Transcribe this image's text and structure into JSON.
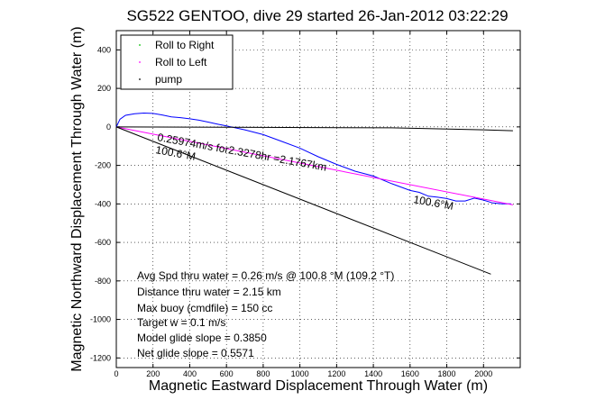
{
  "chart_data": {
    "type": "line",
    "title": "SG522 GENTOO, dive 29 started 26-Jan-2012 03:22:29",
    "xlabel": "Magnetic Eastward Displacement Through Water (m)",
    "ylabel": "Magnetic Northward Displacement Through Water (m)",
    "xlim": [
      0,
      2200
    ],
    "ylim": [
      -1250,
      500
    ],
    "xticks": [
      0,
      200,
      400,
      600,
      800,
      1000,
      1200,
      1400,
      1600,
      1800,
      2000
    ],
    "yticks": [
      -1200,
      -1000,
      -800,
      -600,
      -400,
      -200,
      0,
      200,
      400
    ],
    "grid": "dotted",
    "legend": {
      "placement": "top-left",
      "entries": [
        {
          "name": "Roll to Right",
          "color": "#00c000"
        },
        {
          "name": "Roll to Left",
          "color": "#ff00ff"
        },
        {
          "name": "pump",
          "color": "#000000"
        }
      ]
    },
    "series": [
      {
        "color": "#0000ff",
        "x": [
          0,
          20,
          50,
          100,
          150,
          200,
          250,
          300,
          350,
          400,
          450,
          500,
          550,
          600,
          700,
          800,
          900,
          1000,
          1100,
          1200,
          1300,
          1400,
          1500,
          1600,
          1650,
          1700,
          1750,
          1800,
          1850,
          1900,
          1950,
          2000,
          2050,
          2100,
          2150
        ],
        "y": [
          0,
          40,
          60,
          68,
          72,
          70,
          62,
          52,
          48,
          42,
          35,
          25,
          15,
          5,
          -15,
          -40,
          -75,
          -110,
          -155,
          -195,
          -230,
          -255,
          -295,
          -330,
          -340,
          -360,
          -365,
          -372,
          -385,
          -385,
          -370,
          -380,
          -395,
          -400,
          -400
        ]
      },
      {
        "color": "#ff00ff",
        "x": [
          0,
          2160
        ],
        "y": [
          0,
          -405
        ]
      },
      {
        "color": "#000000",
        "x": [
          0,
          1500,
          2000,
          2160
        ],
        "y": [
          0,
          -5,
          -15,
          -20
        ]
      },
      {
        "color": "#000000",
        "x": [
          0,
          2040
        ],
        "y": [
          0,
          -765
        ]
      }
    ],
    "annotations": {
      "speed": "0.25974m/s for2.3278hr =2.1767km",
      "heading_a": "100.6°M",
      "heading_b": "100.6°M",
      "stats": [
        "Avg Spd thru water = 0.26 m/s @ 100.8   °M (109.2 °T)",
        "Distance thru water = 2.15 km",
        "Max buoy (cmdfile) = 150 cc",
        "Target w = 0.1 m/s",
        "Model glide slope = 0.3850",
        "Net glide slope = 0.5571"
      ]
    }
  }
}
